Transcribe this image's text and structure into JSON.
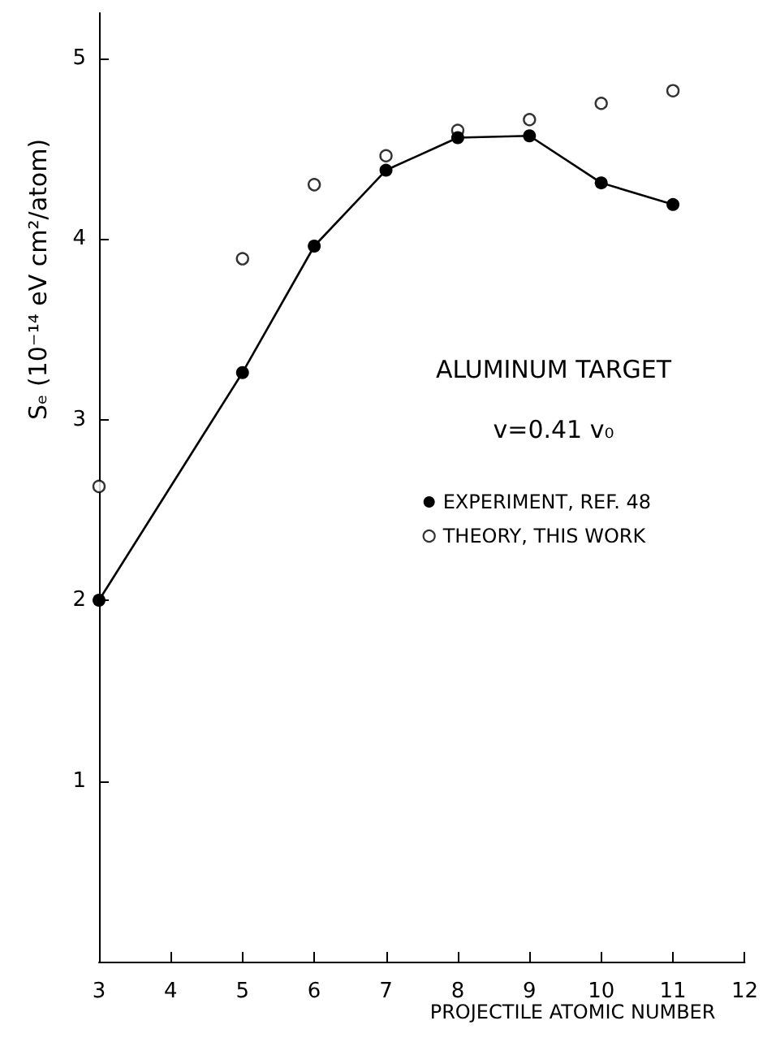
{
  "chart_data": {
    "type": "line",
    "xlabel": "PROJECTILE ATOMIC NUMBER",
    "ylabel": "Sₑ (10⁻¹⁴ eV cm²/atom)",
    "annotations": [
      "ALUMINUM TARGET",
      "v=0.41 v₀"
    ],
    "x": [
      3,
      5,
      6,
      7,
      8,
      9,
      10,
      11
    ],
    "series": [
      {
        "name": "EXPERIMENT, REF. 48",
        "color": "#000000",
        "line_style": "solid",
        "values": [
          2.0,
          3.26,
          3.96,
          4.38,
          4.56,
          4.57,
          4.31,
          4.19
        ]
      },
      {
        "name": "THEORY, THIS WORK",
        "type": "scatter",
        "color": "#000000",
        "values": [
          2.63,
          3.89,
          4.3,
          4.46,
          4.6,
          4.66,
          4.75,
          4.82
        ]
      }
    ],
    "xlim": [
      3,
      12
    ],
    "ylim": [
      0,
      5.25
    ],
    "xticks": [
      3,
      4,
      5,
      6,
      7,
      8,
      9,
      10,
      11,
      12
    ],
    "yticks": [
      1,
      2,
      3,
      4,
      5
    ],
    "grid": false,
    "legend": "right",
    "marker": "circle"
  }
}
